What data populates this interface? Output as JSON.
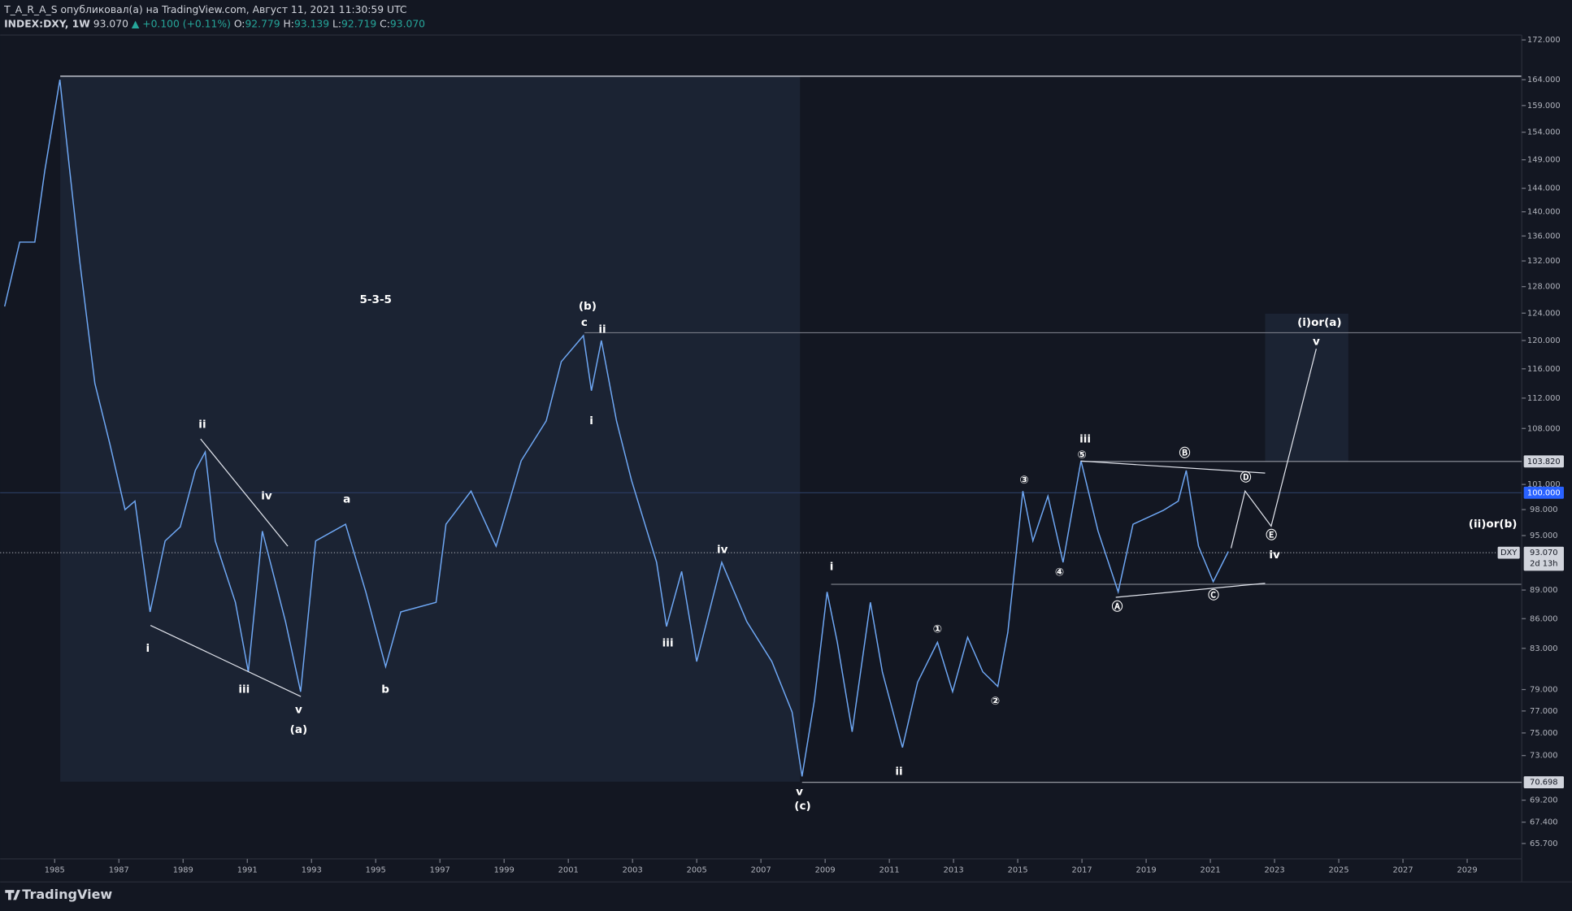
{
  "header": {
    "publisher": "T_A_R_A_S опубликовал(а) на TradingView.com, Август 11, 2021 11:30:59 UTC",
    "symbol": "INDEX:DXY, 1W",
    "last": "93.070",
    "change": "▲ +0.100 (+0.11%)",
    "ohlc": [
      {
        "label": "O:",
        "value": "92.779"
      },
      {
        "label": "H:",
        "value": "93.139"
      },
      {
        "label": "L:",
        "value": "92.719"
      },
      {
        "label": "C:",
        "value": "93.070"
      }
    ]
  },
  "footer": {
    "logo": "TradingView"
  },
  "chart_data": {
    "type": "line",
    "color": "#6fa8f5",
    "log_scale": true,
    "grid": false,
    "x": [
      1983.44,
      1983.91,
      1984.38,
      1984.69,
      1985.16,
      1985.47,
      1985.78,
      1986.25,
      1986.72,
      1987.19,
      1987.5,
      1987.97,
      1988.44,
      1988.91,
      1989.38,
      1989.69,
      1990,
      1990.63,
      1991.03,
      1991.47,
      1992.19,
      1992.66,
      1993.13,
      1994.06,
      1994.69,
      1995.31,
      1995.78,
      1996.88,
      1997.19,
      1997.97,
      1998.75,
      1999.53,
      2000.31,
      2000.78,
      2001.47,
      2001.72,
      2002.03,
      2002.5,
      2002.97,
      2003.75,
      2004.06,
      2004.53,
      2005,
      2005.78,
      2006.56,
      2007.34,
      2007.97,
      2008.28,
      2008.66,
      2009.06,
      2009.38,
      2009.84,
      2010.41,
      2010.78,
      2011.41,
      2011.88,
      2012.5,
      2012.97,
      2013.44,
      2013.91,
      2014.38,
      2014.69,
      2015.16,
      2015.47,
      2015.94,
      2016.41,
      2016.97,
      2017.5,
      2018.13,
      2018.59,
      2019.53,
      2020,
      2020.25,
      2020.63,
      2021.09,
      2021.56
    ],
    "values": [
      125,
      135,
      135,
      147,
      164,
      147,
      132,
      114,
      106,
      98,
      99,
      86.7,
      94.4,
      96,
      102.7,
      105,
      94.4,
      87.7,
      80.7,
      95.5,
      85.7,
      78.8,
      94.4,
      96.3,
      88.8,
      81.2,
      86.7,
      87.7,
      96.3,
      100.2,
      93.8,
      103.9,
      109,
      117,
      120.7,
      113,
      120,
      109,
      101.5,
      92,
      85.2,
      91,
      81.7,
      92,
      85.7,
      81.7,
      76.9,
      71.2,
      77.9,
      88.8,
      83.6,
      75.1,
      87.7,
      80.7,
      73.7,
      79.7,
      83.6,
      78.8,
      84.1,
      80.7,
      79.3,
      84.6,
      100.2,
      94.4,
      99.6,
      92,
      103.9,
      95.5,
      88.8,
      96.3,
      97.9,
      99,
      102.7,
      93.8,
      89.9,
      93.2
    ],
    "xlim": [
      1983.3,
      2030.7
    ],
    "ylim": [
      64.5,
      173
    ],
    "xticks": [
      1985,
      1987,
      1989,
      1991,
      1993,
      1995,
      1997,
      1999,
      2001,
      2003,
      2005,
      2007,
      2009,
      2011,
      2013,
      2015,
      2017,
      2019,
      2021,
      2023,
      2025,
      2027,
      2029
    ],
    "yticks": [
      {
        "value": 172,
        "label": "172.000"
      },
      {
        "value": 164,
        "label": "164.000"
      },
      {
        "value": 159,
        "label": "159.000"
      },
      {
        "value": 154,
        "label": "154.000"
      },
      {
        "value": 149,
        "label": "149.000"
      },
      {
        "value": 144,
        "label": "144.000"
      },
      {
        "value": 140,
        "label": "140.000"
      },
      {
        "value": 136,
        "label": "136.000"
      },
      {
        "value": 132,
        "label": "132.000"
      },
      {
        "value": 128,
        "label": "128.000"
      },
      {
        "value": 124,
        "label": "124.000"
      },
      {
        "value": 120,
        "label": "120.000"
      },
      {
        "value": 116,
        "label": "116.000"
      },
      {
        "value": 112,
        "label": "112.000"
      },
      {
        "value": 108,
        "label": "108.000"
      },
      {
        "value": 101,
        "label": "101.000"
      },
      {
        "value": 98,
        "label": "98.000"
      },
      {
        "value": 95,
        "label": "95.000"
      },
      {
        "value": 89,
        "label": "89.000"
      },
      {
        "value": 86,
        "label": "86.000"
      },
      {
        "value": 83,
        "label": "83.000"
      },
      {
        "value": 79,
        "label": "79.000"
      },
      {
        "value": 77,
        "label": "77.000"
      },
      {
        "value": 75,
        "label": "75.000"
      },
      {
        "value": 73,
        "label": "73.000"
      },
      {
        "value": 69.2,
        "label": "69.200"
      },
      {
        "value": 67.4,
        "label": "67.400"
      },
      {
        "value": 65.7,
        "label": "65.700"
      }
    ],
    "price_levels": [
      {
        "value": 103.82,
        "label": "103.820",
        "color": "#d1d4dc"
      },
      {
        "value": 100,
        "label": "100.000",
        "color": "#2962ff"
      },
      {
        "value": 70.698,
        "label": "70.698",
        "color": "#d1d4dc"
      }
    ],
    "last_price": {
      "value": 93.07,
      "label": "93.070",
      "symbol": "DXY",
      "countdown": "2d 13h"
    },
    "annotations": [
      {
        "text": "5-3-5",
        "x": 1995,
        "y": 126
      },
      {
        "text": "(b)",
        "x": 2001.6,
        "y": 125
      },
      {
        "text": "c",
        "x": 2001.5,
        "y": 122.6
      },
      {
        "text": "ii",
        "x": 2002.06,
        "y": 121.6
      },
      {
        "text": "i",
        "x": 2001.72,
        "y": 109
      },
      {
        "text": "ii",
        "x": 1989.6,
        "y": 108.5
      },
      {
        "text": "iv",
        "x": 1991.6,
        "y": 99.6
      },
      {
        "text": "a",
        "x": 1994.1,
        "y": 99.2
      },
      {
        "text": "i",
        "x": 1987.9,
        "y": 83
      },
      {
        "text": "iii",
        "x": 1990.9,
        "y": 79
      },
      {
        "text": "v",
        "x": 1992.6,
        "y": 77.1
      },
      {
        "text": "(a)",
        "x": 1992.6,
        "y": 75.3
      },
      {
        "text": "b",
        "x": 1995.3,
        "y": 79
      },
      {
        "text": "iii",
        "x": 2004.1,
        "y": 83.5
      },
      {
        "text": "iv",
        "x": 2005.8,
        "y": 93.4
      },
      {
        "text": "v",
        "x": 2008.2,
        "y": 69.9
      },
      {
        "text": "(c)",
        "x": 2008.3,
        "y": 68.7
      },
      {
        "text": "i",
        "x": 2009.2,
        "y": 91.5
      },
      {
        "text": "ii",
        "x": 2011.3,
        "y": 71.6
      },
      {
        "text": "iii",
        "x": 2017.1,
        "y": 106.6
      },
      {
        "text": "iv",
        "x": 2023,
        "y": 92.8
      },
      {
        "text": "v",
        "x": 2024.3,
        "y": 119.8
      },
      {
        "text": "(i)or(a)",
        "x": 2024.4,
        "y": 122.6
      },
      {
        "text": "(ii)or(b)",
        "x": 2029.8,
        "y": 96.3
      },
      {
        "text": "①",
        "x": 2012.5,
        "y": 84.9
      },
      {
        "text": "②",
        "x": 2014.3,
        "y": 77.9
      },
      {
        "text": "③",
        "x": 2015.2,
        "y": 101.5
      },
      {
        "text": "④",
        "x": 2016.3,
        "y": 90.9
      },
      {
        "text": "⑤",
        "x": 2017,
        "y": 104.6
      },
      {
        "text": "Ⓐ",
        "x": 2018.1,
        "y": 87.2
      },
      {
        "text": "Ⓑ",
        "x": 2020.2,
        "y": 104.8
      },
      {
        "text": "Ⓒ",
        "x": 2021.1,
        "y": 88.4
      },
      {
        "text": "Ⓓ",
        "x": 2022.1,
        "y": 101.8
      },
      {
        "text": "Ⓔ",
        "x": 2022.9,
        "y": 95
      }
    ]
  }
}
